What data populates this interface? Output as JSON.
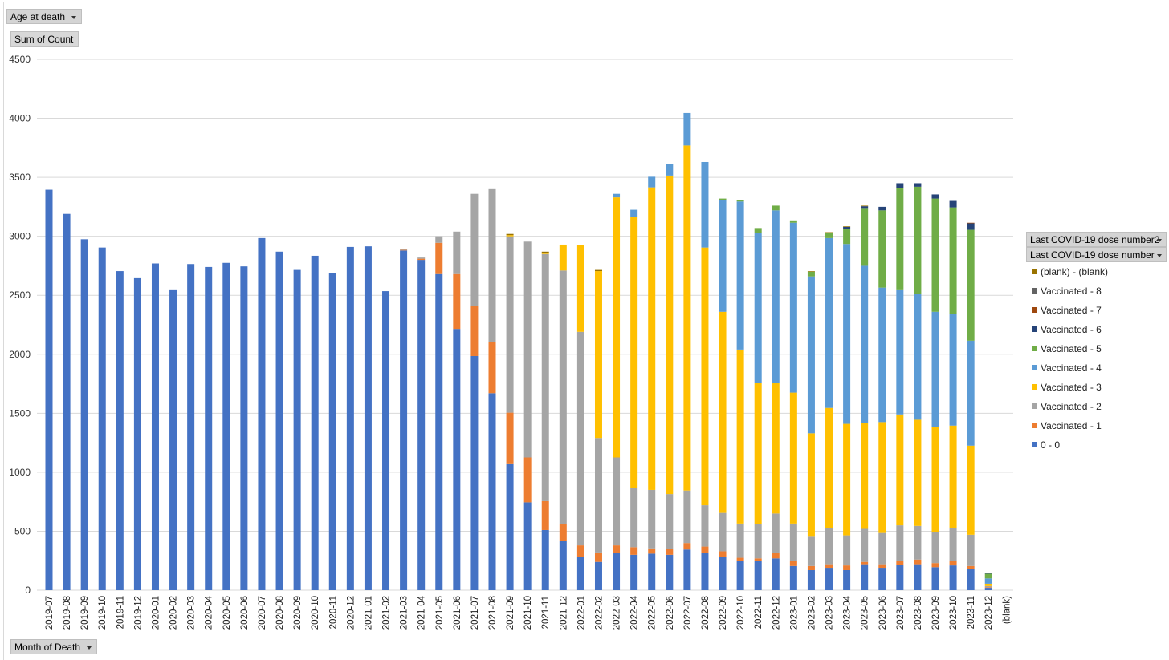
{
  "filters": {
    "age_at_death": "Age at death",
    "sum_of_count": "Sum of Count",
    "month_of_death": "Month of Death",
    "legend_field_1": "Last COVID-19 dose number2",
    "legend_field_2": "Last COVID-19 dose number"
  },
  "colors": {
    "0 - 0": "#4472c4",
    "Vaccinated - 1": "#ed7d31",
    "Vaccinated - 2": "#a5a5a5",
    "Vaccinated - 3": "#ffc000",
    "Vaccinated - 4": "#5b9bd5",
    "Vaccinated - 5": "#70ad47",
    "Vaccinated - 6": "#264478",
    "Vaccinated - 7": "#9e480e",
    "Vaccinated - 8": "#636363",
    "(blank) - (blank)": "#997300"
  },
  "chart_data": {
    "type": "bar",
    "stacked": true,
    "title": "",
    "xlabel": "Month of Death",
    "ylabel": "Sum of Count",
    "ylim": [
      0,
      4500
    ],
    "yticks": [
      0,
      500,
      1000,
      1500,
      2000,
      2500,
      3000,
      3500,
      4000,
      4500
    ],
    "grid": true,
    "legend_position": "right",
    "categories": [
      "2019-07",
      "2019-08",
      "2019-09",
      "2019-10",
      "2019-11",
      "2019-12",
      "2020-01",
      "2020-02",
      "2020-03",
      "2020-04",
      "2020-05",
      "2020-06",
      "2020-07",
      "2020-08",
      "2020-09",
      "2020-10",
      "2020-11",
      "2020-12",
      "2021-01",
      "2021-02",
      "2021-03",
      "2021-04",
      "2021-05",
      "2021-06",
      "2021-07",
      "2021-08",
      "2021-09",
      "2021-10",
      "2021-11",
      "2021-12",
      "2022-01",
      "2022-02",
      "2022-03",
      "2022-04",
      "2022-05",
      "2022-06",
      "2022-07",
      "2022-08",
      "2022-09",
      "2022-10",
      "2022-11",
      "2022-12",
      "2023-01",
      "2023-02",
      "2023-03",
      "2023-04",
      "2023-05",
      "2023-06",
      "2023-07",
      "2023-08",
      "2023-09",
      "2023-10",
      "2023-11",
      "2023-12",
      "(blank)"
    ],
    "legend_order": [
      "(blank) - (blank)",
      "Vaccinated - 8",
      "Vaccinated - 7",
      "Vaccinated - 6",
      "Vaccinated - 5",
      "Vaccinated - 4",
      "Vaccinated - 3",
      "Vaccinated - 2",
      "Vaccinated - 1",
      "0 - 0"
    ],
    "series": [
      {
        "name": "0 - 0",
        "values": [
          3395,
          3190,
          2975,
          2905,
          2705,
          2645,
          2770,
          2550,
          2765,
          2740,
          2775,
          2745,
          2985,
          2870,
          2715,
          2835,
          2690,
          2910,
          2915,
          2535,
          2880,
          2800,
          2680,
          2215,
          1985,
          1670,
          1075,
          745,
          510,
          415,
          285,
          240,
          315,
          300,
          310,
          300,
          345,
          315,
          280,
          245,
          245,
          270,
          205,
          170,
          190,
          170,
          220,
          190,
          215,
          220,
          195,
          210,
          180,
          20,
          0
        ]
      },
      {
        "name": "Vaccinated - 1",
        "values": [
          0,
          0,
          0,
          0,
          0,
          0,
          0,
          0,
          0,
          0,
          0,
          0,
          0,
          0,
          0,
          0,
          0,
          0,
          0,
          0,
          5,
          10,
          265,
          465,
          425,
          435,
          430,
          380,
          245,
          145,
          95,
          80,
          65,
          65,
          45,
          50,
          55,
          55,
          50,
          30,
          25,
          45,
          40,
          35,
          30,
          40,
          20,
          30,
          35,
          40,
          35,
          35,
          25,
          5,
          0
        ]
      },
      {
        "name": "Vaccinated - 2",
        "values": [
          0,
          0,
          0,
          0,
          0,
          0,
          0,
          0,
          0,
          0,
          0,
          0,
          0,
          0,
          0,
          0,
          0,
          0,
          0,
          0,
          5,
          10,
          55,
          360,
          950,
          1295,
          1495,
          1830,
          2095,
          2150,
          1810,
          970,
          745,
          500,
          495,
          465,
          445,
          350,
          325,
          290,
          290,
          335,
          320,
          255,
          305,
          255,
          280,
          265,
          300,
          285,
          265,
          285,
          265,
          10,
          0
        ]
      },
      {
        "name": "Vaccinated - 3",
        "values": [
          0,
          0,
          0,
          0,
          0,
          0,
          0,
          0,
          0,
          0,
          0,
          0,
          0,
          0,
          0,
          0,
          0,
          0,
          0,
          0,
          0,
          0,
          0,
          0,
          0,
          0,
          10,
          0,
          10,
          220,
          735,
          1415,
          2205,
          2300,
          2565,
          2700,
          2925,
          2185,
          1705,
          1475,
          1200,
          1105,
          1110,
          870,
          1020,
          945,
          900,
          940,
          940,
          900,
          885,
          865,
          755,
          20,
          0
        ]
      },
      {
        "name": "Vaccinated - 4",
        "values": [
          0,
          0,
          0,
          0,
          0,
          0,
          0,
          0,
          0,
          0,
          0,
          0,
          0,
          0,
          0,
          0,
          0,
          0,
          0,
          0,
          0,
          0,
          0,
          0,
          0,
          0,
          0,
          0,
          0,
          0,
          0,
          0,
          30,
          60,
          90,
          95,
          275,
          725,
          945,
          1255,
          1265,
          1465,
          1440,
          1330,
          1440,
          1525,
          1330,
          1140,
          1060,
          1070,
          980,
          945,
          890,
          45,
          0
        ]
      },
      {
        "name": "Vaccinated - 5",
        "values": [
          0,
          0,
          0,
          0,
          0,
          0,
          0,
          0,
          0,
          0,
          0,
          0,
          0,
          0,
          0,
          0,
          0,
          0,
          0,
          0,
          0,
          0,
          0,
          0,
          0,
          0,
          0,
          0,
          0,
          0,
          0,
          0,
          0,
          0,
          0,
          0,
          0,
          0,
          15,
          15,
          45,
          40,
          20,
          40,
          40,
          130,
          490,
          655,
          860,
          905,
          960,
          905,
          940,
          40,
          0
        ]
      },
      {
        "name": "Vaccinated - 6",
        "values": [
          0,
          0,
          0,
          0,
          0,
          0,
          0,
          0,
          0,
          0,
          0,
          0,
          0,
          0,
          0,
          0,
          0,
          0,
          0,
          0,
          0,
          0,
          0,
          0,
          0,
          0,
          0,
          0,
          0,
          0,
          0,
          0,
          0,
          0,
          0,
          0,
          0,
          0,
          0,
          0,
          0,
          0,
          0,
          0,
          5,
          15,
          15,
          30,
          40,
          30,
          35,
          55,
          55,
          5,
          0
        ]
      },
      {
        "name": "Vaccinated - 7",
        "values": [
          0,
          0,
          0,
          0,
          0,
          0,
          0,
          0,
          0,
          0,
          0,
          0,
          0,
          0,
          0,
          0,
          0,
          0,
          0,
          0,
          0,
          0,
          0,
          0,
          0,
          0,
          0,
          0,
          0,
          0,
          0,
          0,
          0,
          0,
          0,
          0,
          0,
          0,
          0,
          0,
          0,
          0,
          0,
          0,
          0,
          0,
          0,
          0,
          0,
          0,
          0,
          0,
          5,
          0,
          0
        ]
      },
      {
        "name": "Vaccinated - 8",
        "values": [
          0,
          0,
          0,
          0,
          0,
          0,
          0,
          0,
          0,
          0,
          0,
          0,
          0,
          0,
          0,
          0,
          0,
          0,
          0,
          0,
          0,
          0,
          0,
          0,
          0,
          0,
          0,
          0,
          0,
          0,
          0,
          0,
          0,
          0,
          0,
          0,
          0,
          0,
          0,
          0,
          0,
          0,
          0,
          0,
          0,
          0,
          0,
          0,
          0,
          0,
          0,
          0,
          0,
          0,
          0
        ]
      },
      {
        "name": "(blank) - (blank)",
        "values": [
          0,
          0,
          0,
          0,
          0,
          0,
          0,
          0,
          0,
          0,
          0,
          0,
          0,
          0,
          0,
          0,
          0,
          0,
          0,
          0,
          0,
          0,
          0,
          0,
          0,
          0,
          10,
          0,
          10,
          0,
          0,
          10,
          0,
          0,
          0,
          0,
          0,
          0,
          0,
          0,
          0,
          0,
          0,
          5,
          5,
          5,
          5,
          0,
          0,
          0,
          0,
          0,
          0,
          0,
          0
        ]
      }
    ]
  }
}
